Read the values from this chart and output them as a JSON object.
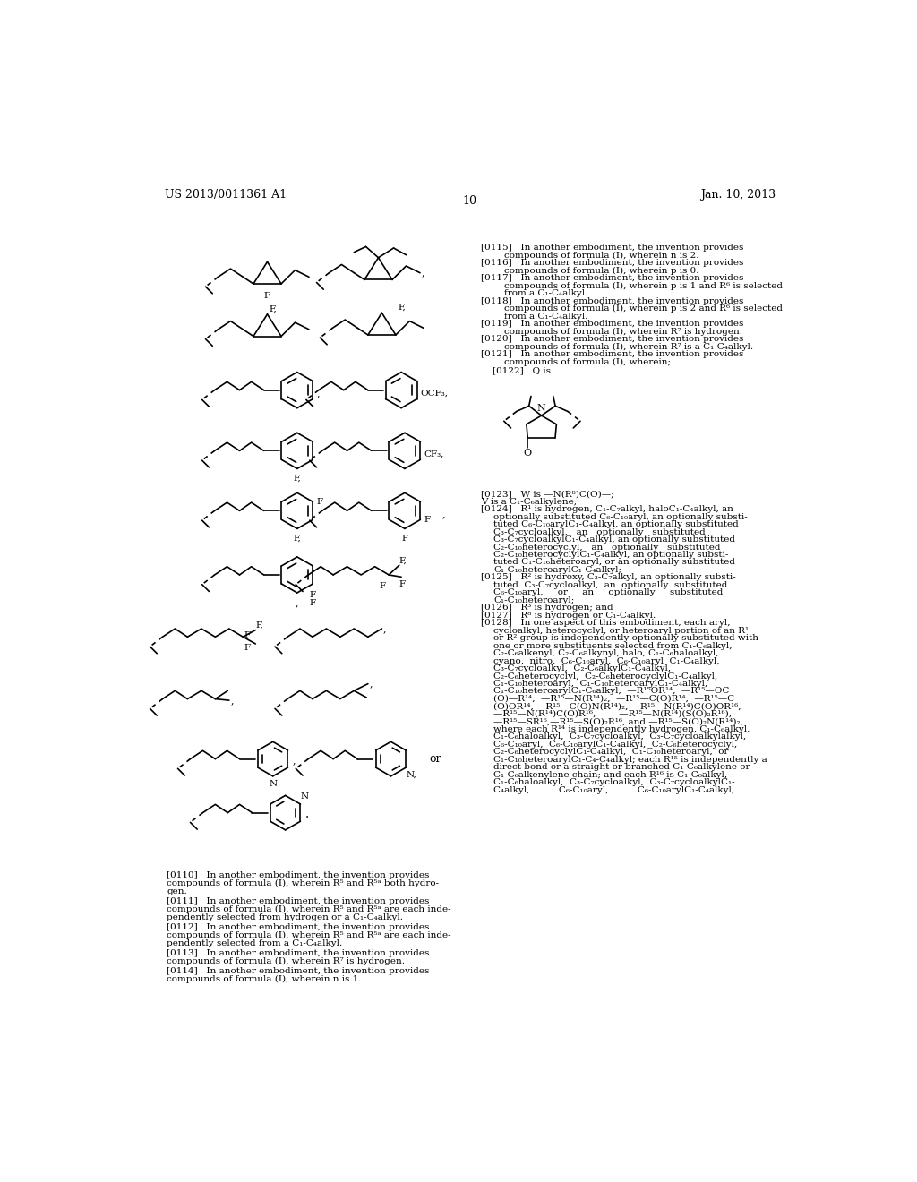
{
  "page_header_left": "US 2013/0011361 A1",
  "page_header_right": "Jan. 10, 2013",
  "page_number": "10",
  "bg": "#ffffff"
}
